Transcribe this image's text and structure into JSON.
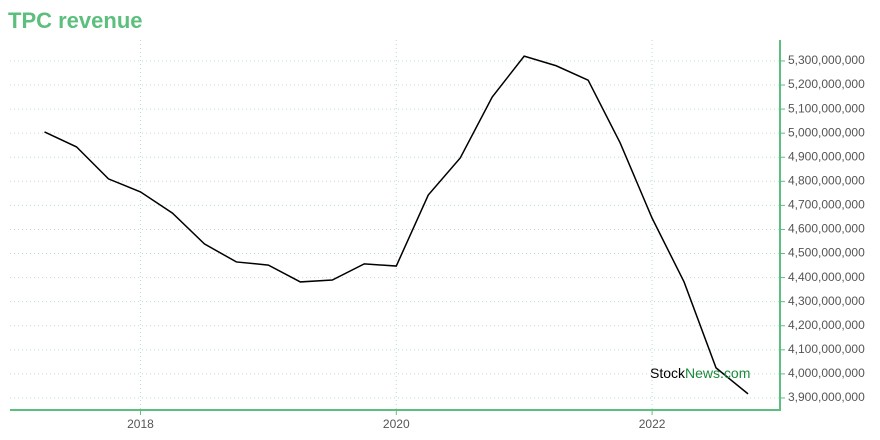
{
  "chart_data": {
    "type": "line",
    "title": "TPC revenue",
    "x": [
      2017.25,
      2017.5,
      2017.75,
      2018,
      2018.25,
      2018.5,
      2018.75,
      2019,
      2019.25,
      2019.5,
      2019.75,
      2020,
      2020.25,
      2020.5,
      2020.75,
      2021,
      2021.25,
      2021.5,
      2021.75,
      2022,
      2022.25,
      2022.5,
      2022.75
    ],
    "series": [
      {
        "name": "TPC revenue",
        "color": "#000000",
        "values": [
          5005000000,
          4943000000,
          4810000000,
          4756000000,
          4668000000,
          4540000000,
          4465000000,
          4452000000,
          4382000000,
          4390000000,
          4457000000,
          4448000000,
          4743000000,
          4897000000,
          5150000000,
          5320000000,
          5280000000,
          5220000000,
          4960000000,
          4647000000,
          4382000000,
          4025000000,
          3917000000
        ]
      }
    ],
    "xlim": [
      2016.98,
      2023.0
    ],
    "xticks": [
      2018,
      2020,
      2022
    ],
    "ylim": [
      3850000000,
      5387000000
    ],
    "yticks": [
      {
        "value": 3900000000,
        "label": "3,900,000,000"
      },
      {
        "value": 4000000000,
        "label": "4,000,000,000"
      },
      {
        "value": 4100000000,
        "label": "4,100,000,000"
      },
      {
        "value": 4200000000,
        "label": "4,200,000,000"
      },
      {
        "value": 4300000000,
        "label": "4,300,000,000"
      },
      {
        "value": 4400000000,
        "label": "4,400,000,000"
      },
      {
        "value": 4500000000,
        "label": "4,500,000,000"
      },
      {
        "value": 4600000000,
        "label": "4,600,000,000"
      },
      {
        "value": 4700000000,
        "label": "4,700,000,000"
      },
      {
        "value": 4800000000,
        "label": "4,800,000,000"
      },
      {
        "value": 4900000000,
        "label": "4,900,000,000"
      },
      {
        "value": 5000000000,
        "label": "5,000,000,000"
      },
      {
        "value": 5100000000,
        "label": "5,100,000,000"
      },
      {
        "value": 5200000000,
        "label": "5,200,000,000"
      },
      {
        "value": 5300000000,
        "label": "5,300,000,000"
      }
    ],
    "grid": true,
    "watermark": {
      "part1": "Stock",
      "part2": "News.com"
    }
  }
}
